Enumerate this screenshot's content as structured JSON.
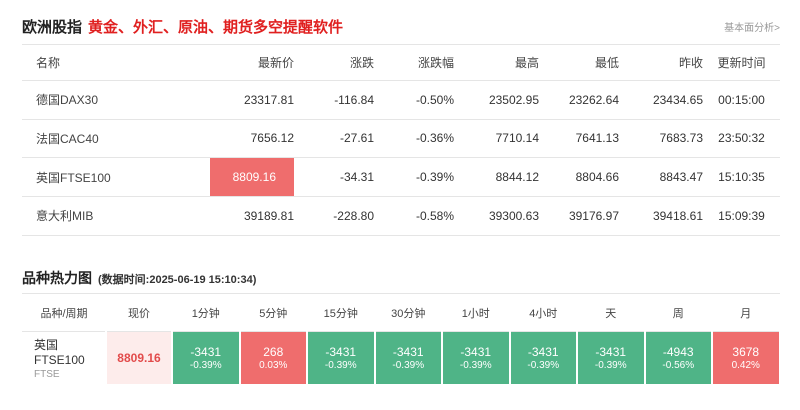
{
  "header": {
    "title": "欧洲股指",
    "slogan": "黄金、外汇、原油、期货多空提醒软件",
    "analysis_link": "基本面分析>"
  },
  "quotes_table": {
    "columns": [
      "名称",
      "最新价",
      "涨跌",
      "涨跌幅",
      "最高",
      "最低",
      "昨收",
      "更新时间"
    ],
    "rows": [
      {
        "name": "德国DAX30",
        "last": "23317.81",
        "change": "-116.84",
        "pct": "-0.50%",
        "high": "23502.95",
        "low": "23262.64",
        "prev": "23434.65",
        "time": "00:15:00"
      },
      {
        "name": "法国CAC40",
        "last": "7656.12",
        "change": "-27.61",
        "pct": "-0.36%",
        "high": "7710.14",
        "low": "7641.13",
        "prev": "7683.73",
        "time": "23:50:32"
      },
      {
        "name": "英国FTSE100",
        "last": "8809.16",
        "change": "-34.31",
        "pct": "-0.39%",
        "high": "8844.12",
        "low": "8804.66",
        "prev": "8843.47",
        "time": "15:10:35"
      },
      {
        "name": "意大利MIB",
        "last": "39189.81",
        "change": "-228.80",
        "pct": "-0.58%",
        "high": "39300.63",
        "low": "39176.97",
        "prev": "39418.61",
        "time": "15:09:39"
      }
    ]
  },
  "heatmap": {
    "title": "品种热力图",
    "time_prefix": "(数据时间:",
    "time_value": "2025-06-19 15:10:34",
    "time_suffix": ")",
    "columns": [
      "品种/周期",
      "现价",
      "1分钟",
      "5分钟",
      "15分钟",
      "30分钟",
      "1小时",
      "4小时",
      "天",
      "周",
      "月"
    ],
    "instrument": {
      "name": "英国FTSE100",
      "code": "FTSE",
      "price": "8809.16"
    },
    "cells": [
      {
        "value": "-3431",
        "pct": "-0.39%",
        "color": "green"
      },
      {
        "value": "268",
        "pct": "0.03%",
        "color": "red"
      },
      {
        "value": "-3431",
        "pct": "-0.39%",
        "color": "green"
      },
      {
        "value": "-3431",
        "pct": "-0.39%",
        "color": "green"
      },
      {
        "value": "-3431",
        "pct": "-0.39%",
        "color": "green"
      },
      {
        "value": "-3431",
        "pct": "-0.39%",
        "color": "green"
      },
      {
        "value": "-3431",
        "pct": "-0.39%",
        "color": "green"
      },
      {
        "value": "-4943",
        "pct": "-0.56%",
        "color": "green"
      },
      {
        "value": "3678",
        "pct": "0.42%",
        "color": "red"
      }
    ]
  },
  "colors": {
    "down": "#2aa66a",
    "flash": "#ef6d6d",
    "heat_green": "#4fb487",
    "heat_red": "#ef6d6d",
    "slogan": "#e02020"
  }
}
